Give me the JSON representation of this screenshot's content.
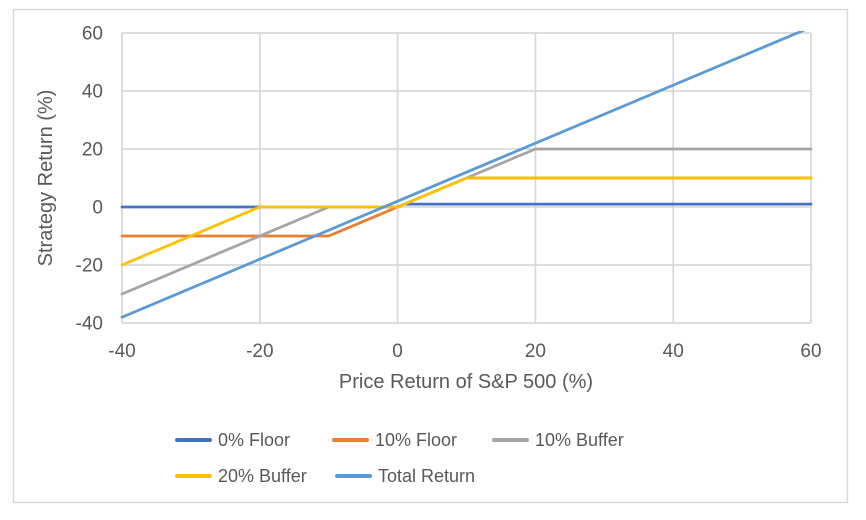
{
  "figure": {
    "background_color": "#FFFFFF",
    "border_color": "#D9D9D9"
  },
  "chart_data": {
    "type": "line",
    "title": "",
    "xlabel": "Price Return of S&P 500 (%)",
    "ylabel": "Strategy Return (%)",
    "xlim": [
      -40,
      60
    ],
    "ylim": [
      -40,
      60
    ],
    "x_ticks": [
      -40,
      -20,
      0,
      20,
      40,
      60
    ],
    "y_ticks": [
      -40,
      -20,
      0,
      20,
      40,
      60
    ],
    "grid": true,
    "gridline_color": "#D9D9D9",
    "tick_text_color": "#595959",
    "axis_title_color": "#595959",
    "legend_position": "bottom",
    "series": [
      {
        "name": "0% Floor",
        "color": "#4472C4",
        "points": [
          [
            -40,
            0
          ],
          [
            0,
            0
          ],
          [
            1,
            1
          ],
          [
            60,
            1
          ]
        ]
      },
      {
        "name": "10% Floor",
        "color": "#ED7D31",
        "points": [
          [
            -40,
            -10
          ],
          [
            -10,
            -10
          ],
          [
            0,
            0
          ],
          [
            10,
            10
          ],
          [
            60,
            10
          ]
        ]
      },
      {
        "name": "10% Buffer",
        "color": "#A5A5A5",
        "points": [
          [
            -40,
            -30
          ],
          [
            -10,
            0
          ],
          [
            0,
            0
          ],
          [
            20,
            20
          ],
          [
            60,
            20
          ]
        ]
      },
      {
        "name": "20% Buffer",
        "color": "#FFC000",
        "points": [
          [
            -40,
            -20
          ],
          [
            -20,
            0
          ],
          [
            0,
            0
          ],
          [
            10,
            10
          ],
          [
            60,
            10
          ]
        ]
      },
      {
        "name": "Total Return",
        "color": "#5B9BD5",
        "points": [
          [
            -40,
            -38
          ],
          [
            60,
            62
          ]
        ]
      }
    ],
    "legend": {
      "rows": [
        [
          "0% Floor",
          "10% Floor",
          "10% Buffer"
        ],
        [
          "20% Buffer",
          "Total Return"
        ]
      ]
    }
  }
}
